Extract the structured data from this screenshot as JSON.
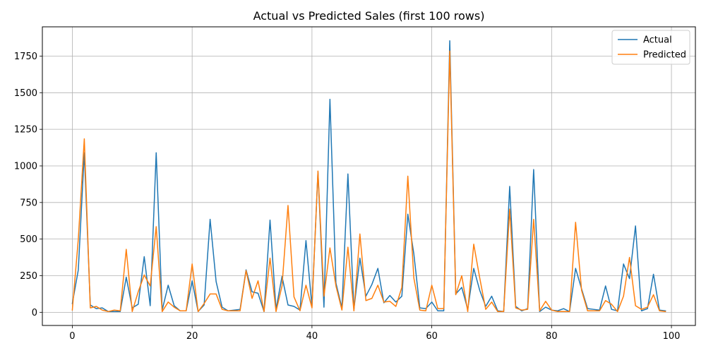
{
  "chart_data": {
    "type": "line",
    "title": "Actual vs Predicted Sales (first 100 rows)",
    "xlabel": "",
    "ylabel": "",
    "xlim": [
      -5,
      104
    ],
    "ylim": [
      -90,
      1950
    ],
    "x_ticks": [
      0,
      20,
      40,
      60,
      80,
      100
    ],
    "y_ticks": [
      0,
      250,
      500,
      750,
      1000,
      1250,
      1500,
      1750
    ],
    "grid": true,
    "legend_position": "top-right",
    "series": [
      {
        "name": "Actual",
        "color": "#1f77b4",
        "values": [
          60,
          290,
          1090,
          50,
          25,
          30,
          5,
          5,
          5,
          240,
          30,
          55,
          380,
          45,
          1090,
          15,
          185,
          45,
          10,
          10,
          215,
          5,
          50,
          635,
          210,
          35,
          10,
          15,
          20,
          290,
          140,
          130,
          5,
          630,
          20,
          245,
          50,
          40,
          15,
          490,
          40,
          960,
          35,
          1455,
          200,
          30,
          945,
          20,
          370,
          110,
          190,
          300,
          65,
          115,
          70,
          110,
          670,
          400,
          30,
          25,
          70,
          10,
          10,
          1855,
          125,
          170,
          20,
          300,
          150,
          40,
          110,
          10,
          5,
          860,
          40,
          10,
          25,
          975,
          5,
          35,
          15,
          10,
          25,
          5,
          300,
          160,
          25,
          20,
          15,
          180,
          20,
          10,
          330,
          230,
          590,
          10,
          25,
          260,
          15,
          10
        ]
      },
      {
        "name": "Predicted",
        "color": "#ff7f0e",
        "values": [
          15,
          500,
          1185,
          30,
          40,
          15,
          5,
          15,
          10,
          430,
          5,
          140,
          255,
          180,
          585,
          5,
          70,
          35,
          10,
          10,
          330,
          5,
          60,
          125,
          125,
          20,
          10,
          10,
          10,
          285,
          95,
          215,
          5,
          370,
          5,
          180,
          730,
          105,
          10,
          185,
          30,
          965,
          110,
          440,
          180,
          15,
          445,
          10,
          535,
          80,
          95,
          185,
          70,
          75,
          40,
          170,
          930,
          235,
          15,
          10,
          185,
          25,
          25,
          1785,
          120,
          250,
          5,
          465,
          235,
          20,
          70,
          5,
          5,
          705,
          30,
          15,
          20,
          635,
          10,
          75,
          15,
          5,
          5,
          5,
          615,
          150,
          10,
          10,
          10,
          80,
          55,
          5,
          110,
          375,
          45,
          20,
          35,
          120,
          10,
          5
        ]
      }
    ]
  }
}
